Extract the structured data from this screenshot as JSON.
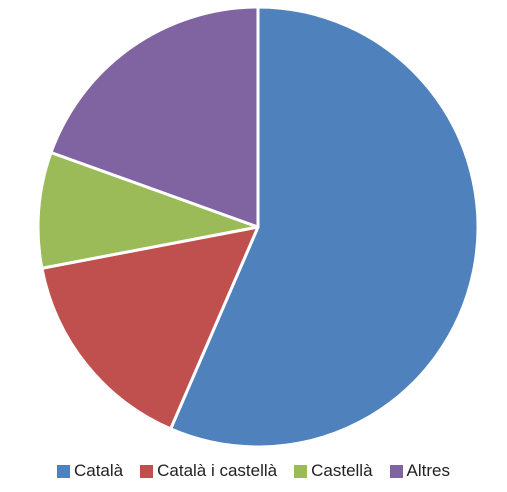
{
  "chart_data": {
    "type": "pie",
    "categories": [
      "Català",
      "Català i castellà",
      "Castellà",
      "Altres"
    ],
    "values": [
      56.5,
      15.5,
      8.5,
      19.5
    ],
    "colors": [
      "#4f81bd",
      "#c0504d",
      "#9bbb59",
      "#8064a2"
    ],
    "start_angle_deg": 0,
    "direction": "clockwise",
    "legend_position": "bottom",
    "title": ""
  }
}
